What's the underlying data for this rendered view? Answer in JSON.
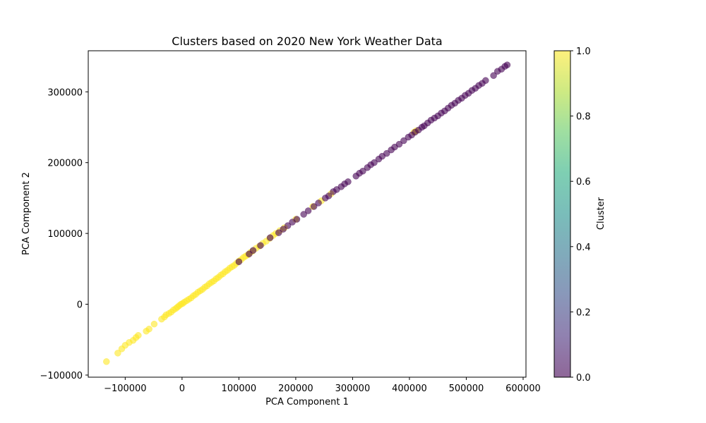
{
  "chart_data": {
    "type": "scatter",
    "title": "Clusters based on 2020 New York Weather Data",
    "xlabel": "PCA Component 1",
    "ylabel": "PCA Component 2",
    "xlim": [
      -165000,
      605000
    ],
    "ylim": [
      -103000,
      358000
    ],
    "xticks": [
      {
        "value": -100000,
        "label": "−100000"
      },
      {
        "value": 0,
        "label": "0"
      },
      {
        "value": 100000,
        "label": "100000"
      },
      {
        "value": 200000,
        "label": "200000"
      },
      {
        "value": 300000,
        "label": "300000"
      },
      {
        "value": 400000,
        "label": "400000"
      },
      {
        "value": 500000,
        "label": "500000"
      },
      {
        "value": 600000,
        "label": "600000"
      }
    ],
    "yticks": [
      {
        "value": -100000,
        "label": "−100000"
      },
      {
        "value": 0,
        "label": "0"
      },
      {
        "value": 100000,
        "label": "100000"
      },
      {
        "value": 200000,
        "label": "200000"
      },
      {
        "value": 300000,
        "label": "300000"
      }
    ],
    "grid": false,
    "marker_alpha": 0.6,
    "colorbar": {
      "label": "Cluster",
      "range": [
        0.0,
        1.0
      ],
      "colormap": "viridis",
      "ticks": [
        {
          "value": 0.0,
          "label": "0.0"
        },
        {
          "value": 0.2,
          "label": "0.2"
        },
        {
          "value": 0.4,
          "label": "0.4"
        },
        {
          "value": 0.6,
          "label": "0.6"
        },
        {
          "value": 0.8,
          "label": "0.8"
        },
        {
          "value": 1.0,
          "label": "1.0"
        }
      ]
    },
    "colors": {
      "cluster_0": "#440154",
      "cluster_1": "#fde725"
    },
    "series": [
      {
        "cluster": 1,
        "points": [
          [
            -133000,
            -81000
          ],
          [
            -113000,
            -69000
          ],
          [
            -106000,
            -63000
          ],
          [
            -100000,
            -58000
          ],
          [
            -93000,
            -54000
          ],
          [
            -86000,
            -51000
          ],
          [
            -81000,
            -47000
          ],
          [
            -77000,
            -44000
          ],
          [
            -63000,
            -38000
          ],
          [
            -58000,
            -35000
          ],
          [
            -49000,
            -28000
          ],
          [
            -36000,
            -21000
          ],
          [
            -31000,
            -18000
          ],
          [
            -28000,
            -15000
          ],
          [
            -23000,
            -13000
          ],
          [
            -19000,
            -11000
          ],
          [
            -15000,
            -8000
          ],
          [
            -11000,
            -6000
          ],
          [
            -8000,
            -4000
          ],
          [
            -5000,
            -2000
          ],
          [
            -2000,
            0
          ],
          [
            1000,
            1000
          ],
          [
            4000,
            3000
          ],
          [
            8000,
            5000
          ],
          [
            12000,
            7000
          ],
          [
            16000,
            9000
          ],
          [
            20000,
            12000
          ],
          [
            24000,
            14000
          ],
          [
            28000,
            17000
          ],
          [
            32000,
            19000
          ],
          [
            36000,
            21000
          ],
          [
            40000,
            24000
          ],
          [
            44000,
            26000
          ],
          [
            48000,
            29000
          ],
          [
            52000,
            31000
          ],
          [
            56000,
            33000
          ],
          [
            60000,
            36000
          ],
          [
            64000,
            38000
          ],
          [
            68000,
            41000
          ],
          [
            72000,
            43000
          ],
          [
            76000,
            46000
          ],
          [
            80000,
            48000
          ],
          [
            84000,
            51000
          ],
          [
            88000,
            53000
          ],
          [
            92000,
            55000
          ],
          [
            96000,
            58000
          ],
          [
            100000,
            61000
          ],
          [
            104000,
            63000
          ],
          [
            108000,
            66000
          ],
          [
            112000,
            68000
          ],
          [
            116000,
            70000
          ],
          [
            120000,
            73000
          ],
          [
            124000,
            75000
          ],
          [
            130000,
            79000
          ],
          [
            136000,
            82000
          ],
          [
            142000,
            86000
          ],
          [
            148000,
            89000
          ],
          [
            154000,
            93000
          ],
          [
            160000,
            97000
          ],
          [
            165000,
            100000
          ],
          [
            172000,
            104000
          ],
          [
            180000,
            108000
          ],
          [
            200000,
            120000
          ],
          [
            230000,
            138000
          ],
          [
            245000,
            146000
          ],
          [
            262000,
            156000
          ],
          [
            408000,
            243000
          ],
          [
            412000,
            245000
          ]
        ]
      },
      {
        "cluster": 0,
        "points": [
          [
            100000,
            60000
          ],
          [
            118000,
            71000
          ],
          [
            125000,
            76000
          ],
          [
            138000,
            83000
          ],
          [
            155000,
            94000
          ],
          [
            170000,
            101000
          ],
          [
            178000,
            106000
          ],
          [
            186000,
            111000
          ],
          [
            194000,
            116000
          ],
          [
            202000,
            120000
          ],
          [
            214000,
            127000
          ],
          [
            222000,
            132000
          ],
          [
            232000,
            138000
          ],
          [
            240000,
            143000
          ],
          [
            252000,
            150000
          ],
          [
            258000,
            153000
          ],
          [
            266000,
            159000
          ],
          [
            272000,
            162000
          ],
          [
            280000,
            166000
          ],
          [
            286000,
            170000
          ],
          [
            292000,
            173000
          ],
          [
            306000,
            181000
          ],
          [
            312000,
            185000
          ],
          [
            318000,
            188000
          ],
          [
            326000,
            193000
          ],
          [
            332000,
            197000
          ],
          [
            338000,
            200000
          ],
          [
            346000,
            205000
          ],
          [
            352000,
            209000
          ],
          [
            360000,
            213000
          ],
          [
            368000,
            218000
          ],
          [
            374000,
            222000
          ],
          [
            382000,
            226000
          ],
          [
            390000,
            231000
          ],
          [
            398000,
            236000
          ],
          [
            404000,
            239000
          ],
          [
            410000,
            243000
          ],
          [
            416000,
            246000
          ],
          [
            422000,
            250000
          ],
          [
            426000,
            252000
          ],
          [
            432000,
            256000
          ],
          [
            438000,
            260000
          ],
          [
            444000,
            263000
          ],
          [
            450000,
            266000
          ],
          [
            456000,
            270000
          ],
          [
            462000,
            273000
          ],
          [
            468000,
            277000
          ],
          [
            474000,
            281000
          ],
          [
            480000,
            284000
          ],
          [
            486000,
            288000
          ],
          [
            492000,
            291000
          ],
          [
            498000,
            295000
          ],
          [
            504000,
            298000
          ],
          [
            510000,
            302000
          ],
          [
            516000,
            305000
          ],
          [
            522000,
            309000
          ],
          [
            528000,
            312000
          ],
          [
            534000,
            316000
          ],
          [
            548000,
            323000
          ],
          [
            555000,
            329000
          ],
          [
            562000,
            332000
          ],
          [
            568000,
            336000
          ],
          [
            572000,
            338000
          ]
        ]
      }
    ]
  }
}
